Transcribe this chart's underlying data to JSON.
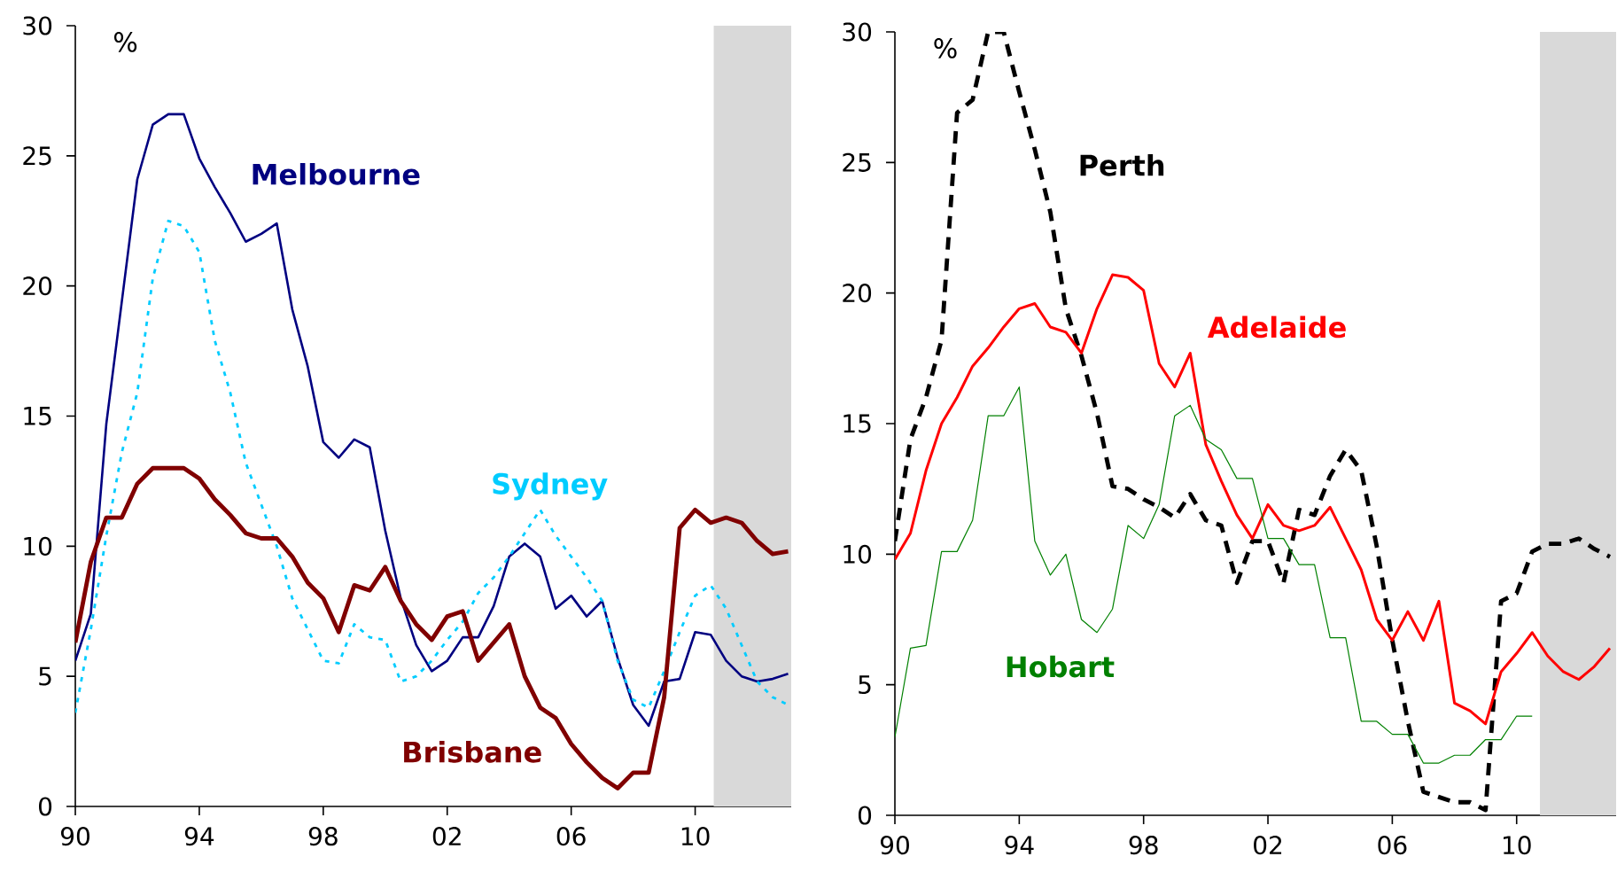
{
  "chart_data": [
    {
      "type": "line",
      "ylabel": "%",
      "x": [
        1990,
        1990.5,
        1991,
        1991.5,
        1992,
        1992.5,
        1993,
        1993.5,
        1994,
        1994.5,
        1995,
        1995.5,
        1996,
        1996.5,
        1997,
        1997.5,
        1998,
        1998.5,
        1999,
        1999.5,
        2000,
        2000.5,
        2001,
        2001.5,
        2002,
        2002.5,
        2003,
        2003.5,
        2004,
        2004.5,
        2005,
        2005.5,
        2006,
        2006.5,
        2007,
        2007.5,
        2008,
        2008.5,
        2009,
        2009.5,
        2010,
        2010.5,
        2011,
        2011.5,
        2012,
        2012.5,
        2013
      ],
      "series": [
        {
          "name": "Melbourne",
          "color": "#000080",
          "line_style": "solid",
          "values": [
            5.6,
            7.4,
            14.7,
            19.4,
            24.1,
            26.2,
            26.6,
            26.6,
            24.9,
            23.8,
            22.8,
            21.7,
            22.0,
            22.4,
            19.1,
            16.9,
            14.0,
            13.4,
            14.1,
            13.8,
            10.6,
            8.0,
            6.2,
            5.2,
            5.6,
            6.5,
            6.5,
            7.7,
            9.6,
            10.1,
            9.6,
            7.6,
            8.1,
            7.3,
            7.9,
            5.7,
            3.9,
            3.1,
            4.8,
            4.9,
            6.7,
            6.6,
            5.6,
            5.0,
            4.8,
            4.9,
            5.1
          ]
        },
        {
          "name": "Sydney",
          "color": "#00ccff",
          "line_style": "dotted",
          "values": [
            3.6,
            6.8,
            10.4,
            13.6,
            15.9,
            20.3,
            22.5,
            22.3,
            21.3,
            17.9,
            15.9,
            13.2,
            11.6,
            10.0,
            8.0,
            6.8,
            5.6,
            5.5,
            7.0,
            6.5,
            6.4,
            4.8,
            5.0,
            5.6,
            6.4,
            7.1,
            8.2,
            8.8,
            9.6,
            10.5,
            11.4,
            10.4,
            9.6,
            8.8,
            7.9,
            5.6,
            4.1,
            3.8,
            5.2,
            6.7,
            8.1,
            8.5,
            7.6,
            6.2,
            4.8,
            4.2,
            3.9
          ]
        },
        {
          "name": "Brisbane",
          "color": "#800000",
          "line_style": "solid",
          "values": [
            6.3,
            9.4,
            11.1,
            11.1,
            12.4,
            13.0,
            13.0,
            13.0,
            12.6,
            11.8,
            11.2,
            10.5,
            10.3,
            10.3,
            9.6,
            8.6,
            8.0,
            6.7,
            8.5,
            8.3,
            9.2,
            7.9,
            7.0,
            6.4,
            7.3,
            7.5,
            5.6,
            6.3,
            7.0,
            5.0,
            3.8,
            3.4,
            2.4,
            1.7,
            1.1,
            0.7,
            1.3,
            1.3,
            4.2,
            10.7,
            11.4,
            10.9,
            11.1,
            10.9,
            10.2,
            9.7,
            9.8
          ]
        }
      ],
      "xlim": [
        1990,
        2013.1
      ],
      "ylim": [
        0,
        30
      ],
      "xticks": [
        {
          "value": 1990,
          "label": "90"
        },
        {
          "value": 1994,
          "label": "94"
        },
        {
          "value": 1998,
          "label": "98"
        },
        {
          "value": 2002,
          "label": "02"
        },
        {
          "value": 2006,
          "label": "06"
        },
        {
          "value": 2010,
          "label": "10"
        }
      ],
      "yticks": [
        0,
        5,
        10,
        15,
        20,
        25,
        30
      ],
      "bands": [
        {
          "axis": "x",
          "from": 2010.6,
          "to": 2013.1,
          "color": "#d9d9d9"
        }
      ]
    },
    {
      "type": "line",
      "ylabel": "%",
      "x": [
        1990,
        1990.5,
        1991,
        1991.5,
        1992,
        1992.5,
        1993,
        1993.5,
        1994,
        1994.5,
        1995,
        1995.5,
        1996,
        1996.5,
        1997,
        1997.5,
        1998,
        1998.5,
        1999,
        1999.5,
        2000,
        2000.5,
        2001,
        2001.5,
        2002,
        2002.5,
        2003,
        2003.5,
        2004,
        2004.5,
        2005,
        2005.5,
        2006,
        2006.5,
        2007,
        2007.5,
        2008,
        2008.5,
        2009,
        2009.5,
        2010,
        2010.5,
        2011,
        2011.5,
        2012,
        2012.5,
        2013
      ],
      "series": [
        {
          "name": "Perth",
          "color": "#000000",
          "line_style": "dashed",
          "values": [
            10.5,
            14.4,
            16.0,
            18.2,
            26.9,
            27.4,
            30,
            30,
            27.7,
            25.5,
            23.1,
            19.4,
            17.6,
            15.4,
            12.6,
            12.5,
            12.1,
            11.8,
            11.4,
            12.3,
            11.3,
            11.1,
            8.9,
            10.5,
            10.5,
            8.9,
            11.7,
            11.5,
            13.0,
            14.0,
            13.2,
            10.3,
            6.7,
            3.6,
            0.9,
            0.7,
            0.5,
            0.5,
            0.2,
            8.2,
            8.5,
            10.1,
            10.4,
            10.4,
            10.6,
            10.2,
            9.9
          ]
        },
        {
          "name": "Adelaide",
          "color": "#ff0000",
          "line_style": "solid",
          "values": [
            9.8,
            10.8,
            13.2,
            15.0,
            16.0,
            17.2,
            17.9,
            18.7,
            19.4,
            19.6,
            18.7,
            18.5,
            17.7,
            19.4,
            20.7,
            20.6,
            20.1,
            17.3,
            16.4,
            17.7,
            14.2,
            12.8,
            11.5,
            10.6,
            11.9,
            11.1,
            10.9,
            11.1,
            11.8,
            10.6,
            9.4,
            7.5,
            6.7,
            7.8,
            6.7,
            8.2,
            4.3,
            4.0,
            3.5,
            5.5,
            6.2,
            7.0,
            6.1,
            5.5,
            5.2,
            5.7,
            6.4
          ]
        },
        {
          "name": "Hobart",
          "color": "#008000",
          "line_style": "solid",
          "values": [
            3.0,
            6.4,
            6.5,
            10.1,
            10.1,
            11.3,
            15.3,
            15.3,
            16.4,
            10.5,
            9.2,
            10.0,
            7.5,
            7.0,
            7.9,
            11.1,
            10.6,
            11.9,
            15.3,
            15.7,
            14.4,
            14.0,
            12.9,
            12.9,
            10.6,
            10.6,
            9.6,
            9.6,
            6.8,
            6.8,
            3.6,
            3.6,
            3.1,
            3.1,
            2.0,
            2.0,
            2.3,
            2.3,
            2.9,
            2.9,
            3.8,
            3.8,
            null,
            null,
            null,
            null,
            null
          ]
        }
      ],
      "xlim": [
        1990,
        2013.2
      ],
      "ylim": [
        0,
        30
      ],
      "xticks": [
        {
          "value": 1990,
          "label": "90"
        },
        {
          "value": 1994,
          "label": "94"
        },
        {
          "value": 1998,
          "label": "98"
        },
        {
          "value": 2002,
          "label": "02"
        },
        {
          "value": 2006,
          "label": "06"
        },
        {
          "value": 2010,
          "label": "10"
        }
      ],
      "yticks": [
        0,
        5,
        10,
        15,
        20,
        25,
        30
      ],
      "bands": [
        {
          "axis": "x",
          "from": 2010.75,
          "to": 2013.2,
          "color": "#d9d9d9"
        }
      ]
    }
  ]
}
